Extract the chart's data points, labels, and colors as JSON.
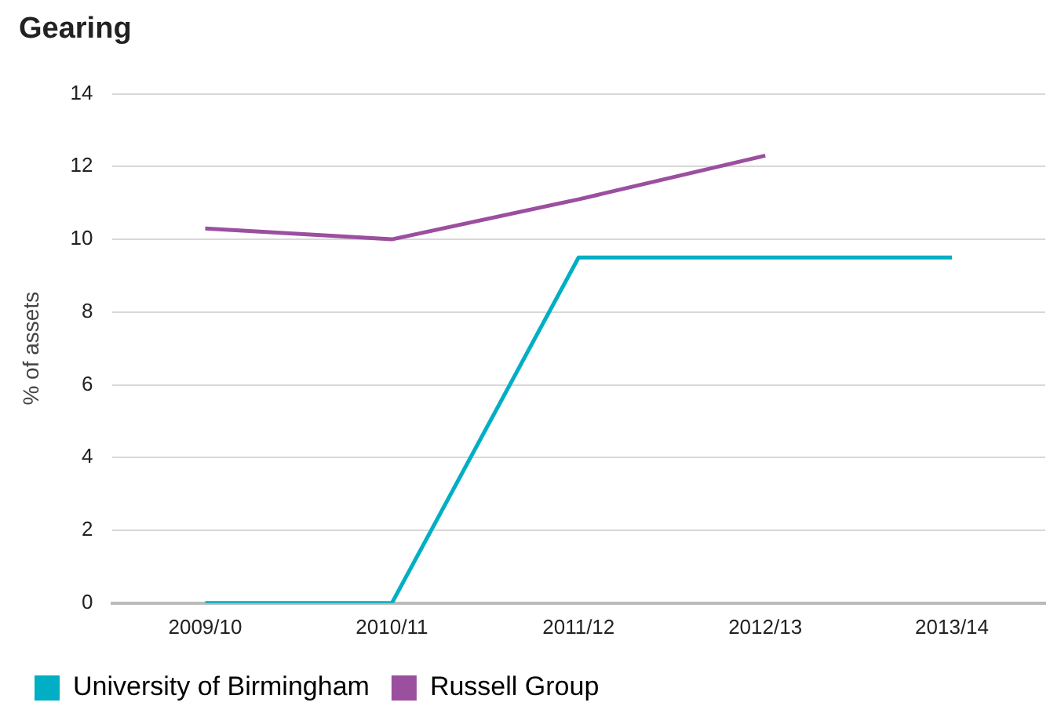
{
  "chart_data": {
    "type": "line",
    "title": "Gearing",
    "ylabel": "% of assets",
    "categories": [
      "2009/10",
      "2010/11",
      "2011/12",
      "2012/13",
      "2013/14"
    ],
    "series": [
      {
        "name": "University of Birmingham",
        "color": "#00afc4",
        "values": [
          0,
          0,
          9.5,
          9.5,
          9.5
        ]
      },
      {
        "name": "Russell Group",
        "color": "#9b4f9f",
        "values": [
          10.3,
          10.0,
          11.1,
          12.3,
          null
        ]
      }
    ],
    "ylim": [
      0,
      14
    ],
    "yticks": [
      0,
      2,
      4,
      6,
      8,
      10,
      12,
      14
    ],
    "grid": "y",
    "legend": "bottom left",
    "marker": "none",
    "line_style": "solid"
  }
}
